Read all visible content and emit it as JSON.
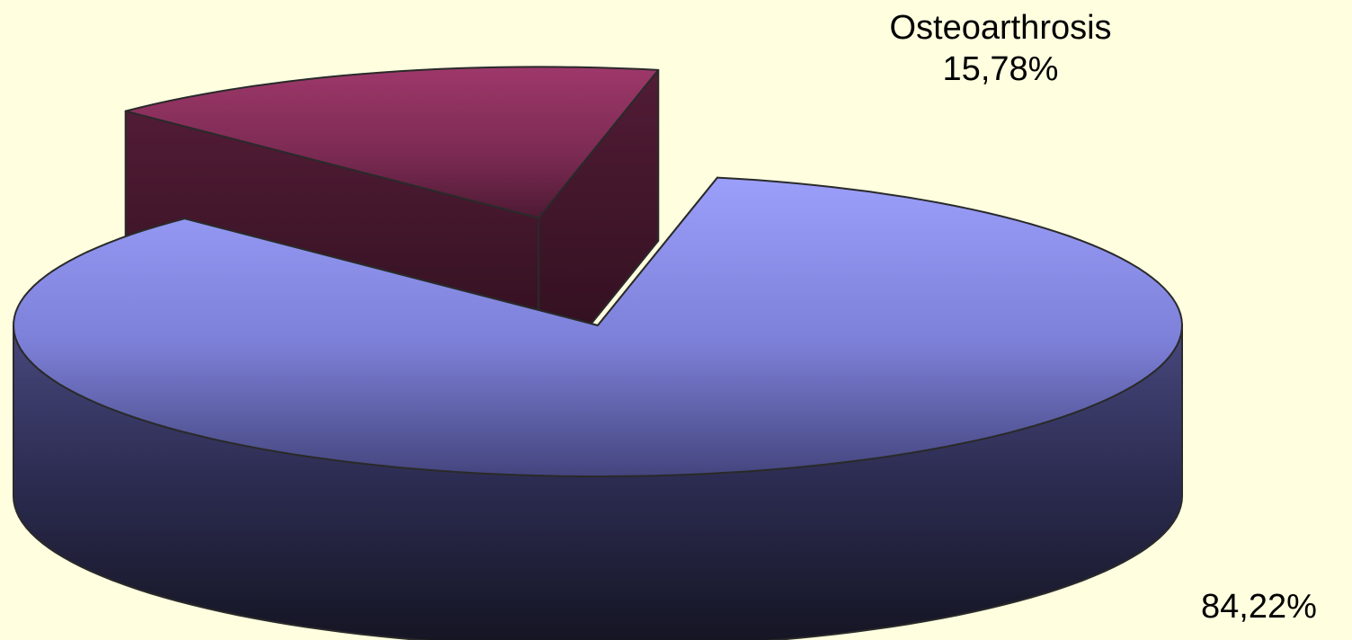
{
  "chart_data": {
    "type": "pie",
    "style": "3d-exploded",
    "slices": [
      {
        "name": "Osteoarthrosis",
        "value": 15.78,
        "value_label": "15,78%",
        "color_top": "#9a3868",
        "color_side": "#3e1426",
        "exploded": true
      },
      {
        "name": "",
        "value": 84.22,
        "value_label": "84,22%",
        "color_top": "#9a9ef8",
        "color_side": "#1c1c34",
        "exploded": false
      }
    ],
    "background": "#ffffe0"
  }
}
